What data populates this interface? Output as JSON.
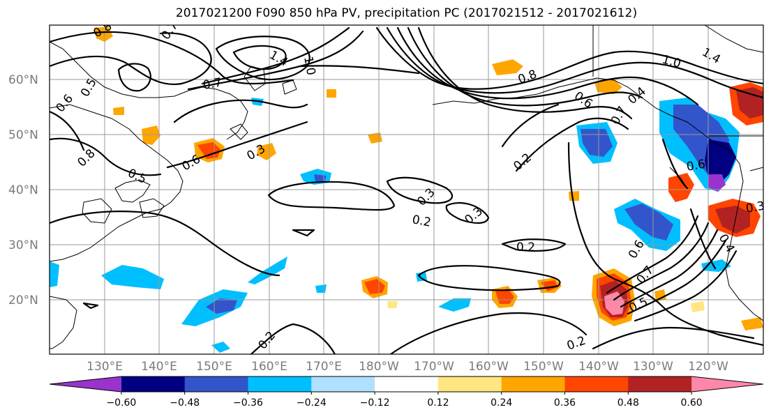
{
  "title": "2017021200 F090 850 hPa PV, precipitation PC (2017021512 - 2017021612)",
  "map": {
    "lat_labels": [
      "60°N",
      "50°N",
      "40°N",
      "30°N",
      "20°N"
    ],
    "lon_labels": [
      "130°E",
      "140°E",
      "150°E",
      "160°E",
      "170°E",
      "180°W",
      "170°W",
      "160°W",
      "150°W",
      "140°W",
      "130°W",
      "120°W"
    ]
  },
  "contour_labels": [
    "0.8",
    "0.7",
    "1.0",
    "1.4",
    "0.5",
    "0.6",
    "0.8",
    "0.7",
    "0.5",
    "0.6",
    "0.3",
    "0.2",
    "0.3",
    "0.3",
    "0.2",
    "0.2",
    "0.8",
    "0.6",
    "0.7",
    "0.4",
    "0.6",
    "0.6",
    "0.7",
    "0.5",
    "0.2",
    "0.2",
    "1.0",
    "1.4",
    "0.4",
    "0.3"
  ],
  "colorbar": {
    "ticks": [
      "−0.60",
      "−0.48",
      "−0.36",
      "−0.24",
      "−0.12",
      "0.12",
      "0.24",
      "0.36",
      "0.48",
      "0.60"
    ],
    "colors": [
      "#9933cc",
      "#000080",
      "#3355cc",
      "#00bfff",
      "#b0e0ff",
      "#ffffff",
      "#ffe680",
      "#ffa500",
      "#ff4500",
      "#b22222",
      "#ff88aa"
    ]
  }
}
